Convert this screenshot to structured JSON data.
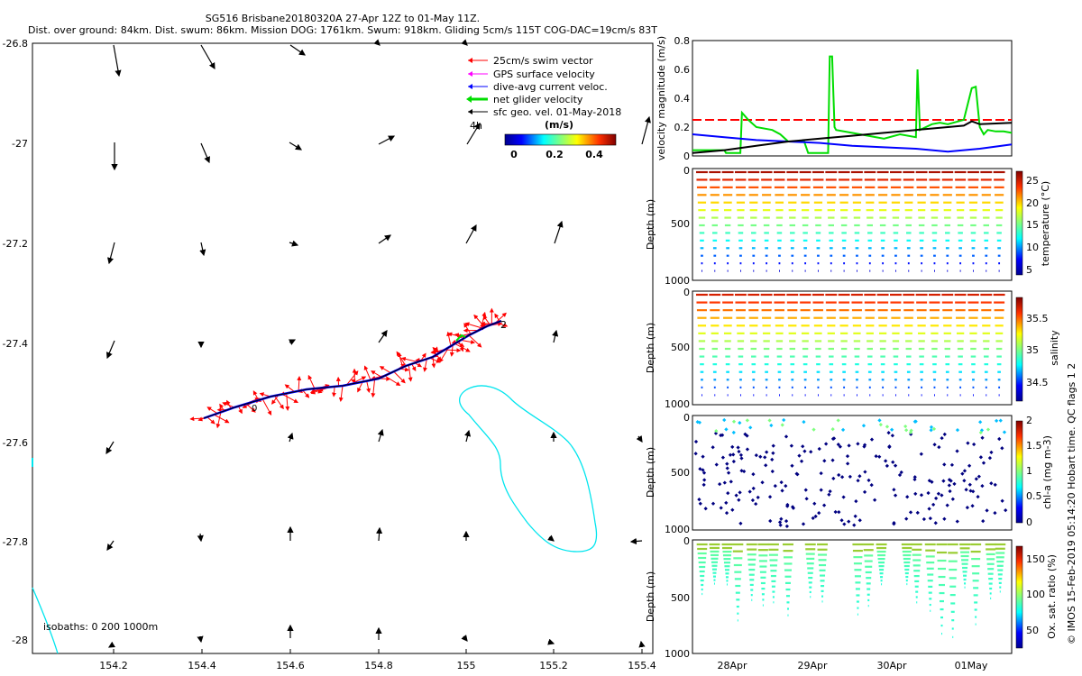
{
  "title": {
    "line1": "SG516 Brisbane20180320A 27-Apr 12Z to 01-May 11Z.",
    "line2": "Dist. over ground: 84km. Dist. swum: 86km. Mission DOG: 1761km. Swum: 918km. Gliding 5cm/s 115T COG-DAC=19cm/s 83T"
  },
  "map": {
    "lon_ticks": [
      "154.2",
      "154.4",
      "154.6",
      "154.8",
      "155",
      "155.2",
      "155.4"
    ],
    "lat_ticks": [
      "-26.8",
      "-27",
      "-27.2",
      "-27.4",
      "-27.6",
      "-27.8",
      "-28"
    ],
    "legend": [
      {
        "label": "25cm/s swim vector",
        "color": "#ff0000"
      },
      {
        "label": "GPS surface velocity",
        "color": "#ff00ff"
      },
      {
        "label": "dive-avg current veloc.",
        "color": "#0000ff"
      },
      {
        "label": "net glider velocity",
        "color": "#00dd00"
      },
      {
        "label": "sfc geo. vel. 01-May-2018",
        "color": "#000000"
      }
    ],
    "colorbar_unit": "(m/s)",
    "colorbar_ticks": [
      "0",
      "0.2",
      "0.4"
    ],
    "label_4h": "4h",
    "track_end_label": "2",
    "track_start_label": "0",
    "isobaths_label": "isobaths: 0   200  1000m",
    "colors": {
      "track": "#0000ff",
      "swim": "#ff0000",
      "isobath": "#00e5ee",
      "arrow": "#000000"
    }
  },
  "panels": {
    "velocity": {
      "ylabel": "velocity magnitude (m/s)",
      "yticks": [
        "0",
        "0.2",
        "0.4",
        "0.6",
        "0.8"
      ]
    },
    "temperature": {
      "ylabel": "Depth (m)",
      "yticks": [
        "0",
        "500",
        "1000"
      ],
      "cb_label": "temperature (°C)",
      "cb_ticks": [
        "25",
        "20",
        "15",
        "10",
        "5"
      ]
    },
    "salinity": {
      "ylabel": "Depth (m)",
      "yticks": [
        "0",
        "500",
        "1000"
      ],
      "cb_label": "salinity",
      "cb_ticks": [
        "35.5",
        "35",
        "34.5"
      ]
    },
    "chla": {
      "ylabel": "Depth (m)",
      "yticks": [
        "0",
        "500",
        "1000"
      ],
      "cb_label": "chl-a (mg m-3)",
      "cb_ticks": [
        "2",
        "1.5",
        "1",
        "0.5",
        "0"
      ]
    },
    "oxygen": {
      "ylabel": "Depth (m)",
      "yticks": [
        "0",
        "500",
        "1000"
      ],
      "cb_label": "Ox. sat. ratio (%)",
      "cb_ticks": [
        "150",
        "100",
        "50"
      ]
    },
    "date_ticks": [
      "28Apr",
      "29Apr",
      "30Apr",
      "01May"
    ]
  },
  "side_note": "© IMOS 15-Feb-2019 05:14:20 Hobart time. QC flags 1  2",
  "chart_data": {
    "type": "line",
    "title": "velocity magnitude",
    "ylabel": "velocity magnitude (m/s)",
    "xlabel": "",
    "categories": [
      "28Apr",
      "29Apr",
      "30Apr",
      "01May"
    ],
    "ylim": [
      0,
      0.8
    ],
    "series": [
      {
        "name": "threshold",
        "color": "#ff0000",
        "x": [
          0,
          4
        ],
        "values": [
          0.25,
          0.25
        ]
      },
      {
        "name": "net glider velocity",
        "color": "#00dd00",
        "x": [
          0,
          0.4,
          0.42,
          0.6,
          0.62,
          0.7,
          0.8,
          1.0,
          1.1,
          1.2,
          1.4,
          1.45,
          1.7,
          1.72,
          1.75,
          1.78,
          1.8,
          2.0,
          2.2,
          2.4,
          2.6,
          2.8,
          2.82,
          2.85,
          3.0,
          3.1,
          3.2,
          3.4,
          3.5,
          3.55,
          3.6,
          3.65,
          3.7,
          3.8,
          3.9,
          4.0
        ],
        "values": [
          0.04,
          0.04,
          0.02,
          0.02,
          0.3,
          0.25,
          0.2,
          0.18,
          0.15,
          0.1,
          0.1,
          0.02,
          0.02,
          0.69,
          0.69,
          0.2,
          0.18,
          0.16,
          0.14,
          0.12,
          0.15,
          0.13,
          0.6,
          0.18,
          0.22,
          0.23,
          0.22,
          0.25,
          0.47,
          0.48,
          0.2,
          0.15,
          0.18,
          0.17,
          0.17,
          0.16
        ]
      },
      {
        "name": "dive-avg current",
        "color": "#0000ff",
        "x": [
          0,
          0.4,
          0.8,
          1.2,
          1.6,
          2.0,
          2.4,
          2.8,
          3.2,
          3.6,
          4.0
        ],
        "values": [
          0.15,
          0.13,
          0.11,
          0.1,
          0.09,
          0.07,
          0.06,
          0.05,
          0.03,
          0.05,
          0.08
        ]
      },
      {
        "name": "sfc geo velocity",
        "color": "#000000",
        "x": [
          0,
          0.4,
          0.8,
          1.2,
          1.6,
          2.0,
          2.4,
          2.8,
          3.2,
          3.4,
          3.5,
          3.6,
          4.0
        ],
        "values": [
          0.02,
          0.04,
          0.07,
          0.1,
          0.12,
          0.14,
          0.16,
          0.18,
          0.2,
          0.21,
          0.24,
          0.22,
          0.23
        ]
      }
    ],
    "dive_count": 24
  }
}
